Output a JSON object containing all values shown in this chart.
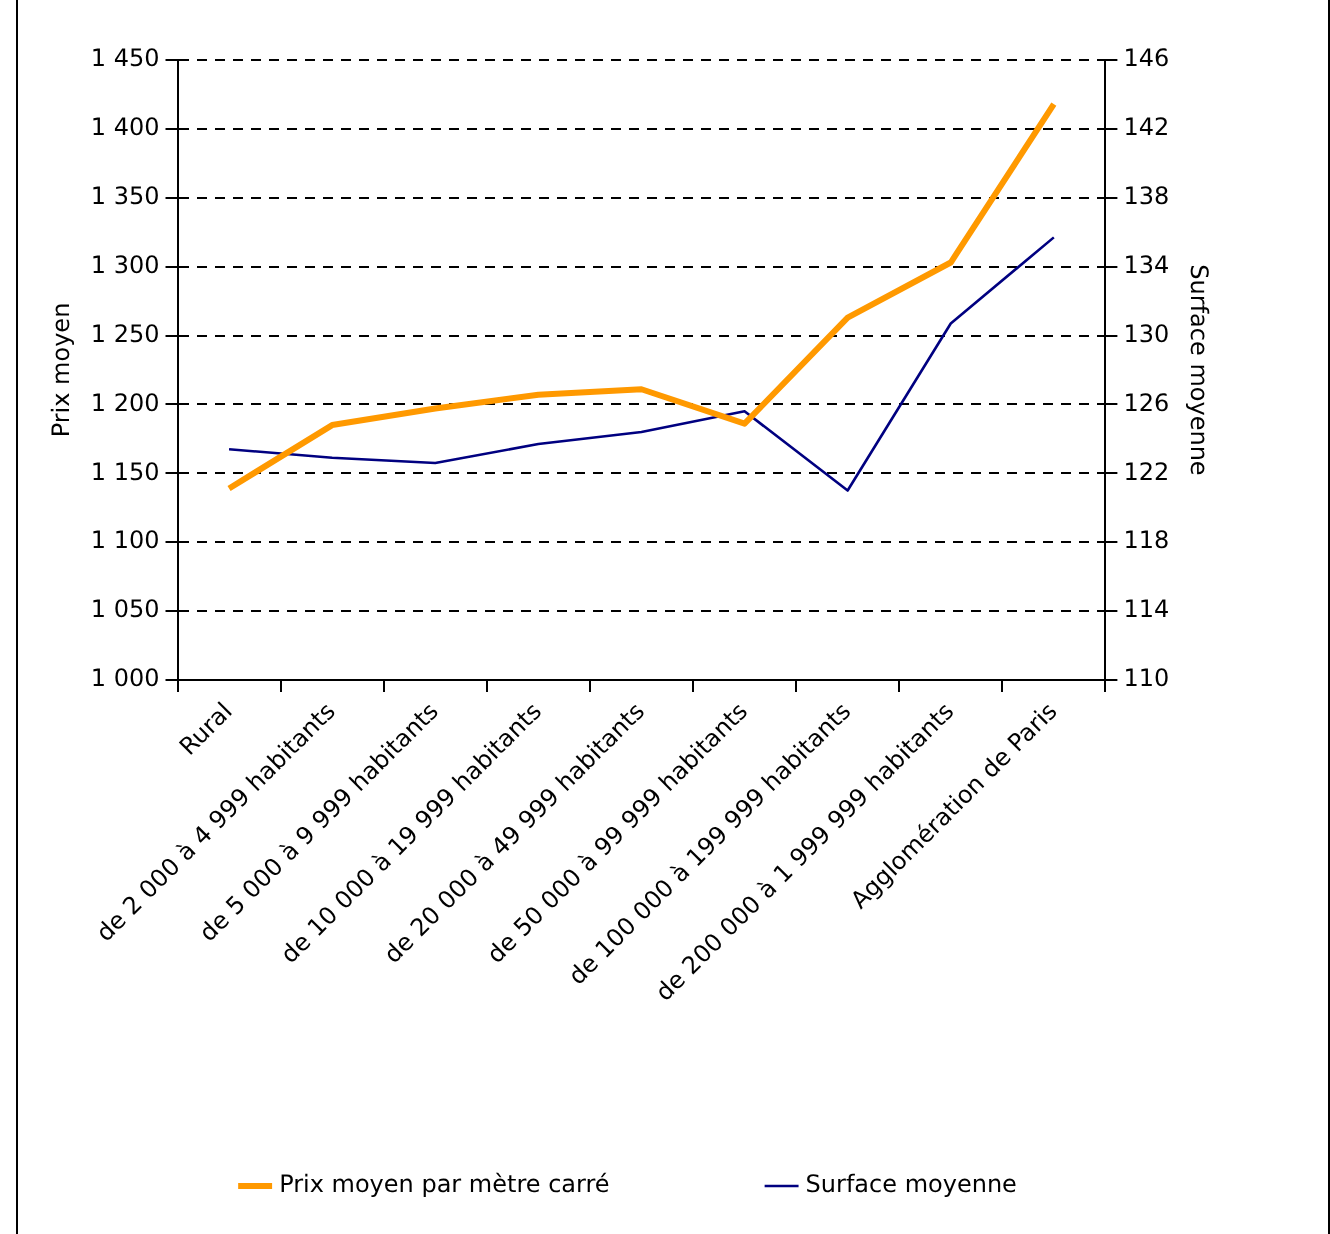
{
  "chart_data": {
    "type": "line",
    "ylabel": "Prix moyen",
    "y2label": "Surface moyenne",
    "categories": [
      "Rural",
      "de 2 000 à 4 999 habitants",
      "de 5 000 à 9 999 habitants",
      "de 10 000 à 19 999 habitants",
      "de 20 000 à 49 999 habitants",
      "de 50 000 à 99 999 habitants",
      "de 100 000 à 199 999 habitants",
      "de 200 000 à 1 999 999 habitants",
      "Agglomération de Paris"
    ],
    "series": [
      {
        "name": "Prix moyen par mètre carré",
        "color": "#ff9900",
        "values": [
          1139,
          1185,
          1197,
          1207,
          1211,
          1186,
          1263,
          1303,
          1418
        ]
      },
      {
        "name": "Surface moyenne",
        "color": "#000080",
        "axis": "y2",
        "values": [
          123.4,
          122.9,
          122.6,
          123.7,
          124.4,
          125.6,
          121.0,
          130.7,
          135.7
        ]
      }
    ],
    "ylim": [
      1000,
      1450
    ],
    "yticks": [
      {
        "value": 1000,
        "label": "1 000"
      },
      {
        "value": 1050,
        "label": "1 050"
      },
      {
        "value": 1100,
        "label": "1 100"
      },
      {
        "value": 1150,
        "label": "1 150"
      },
      {
        "value": 1200,
        "label": "1 200"
      },
      {
        "value": 1250,
        "label": "1 250"
      },
      {
        "value": 1300,
        "label": "1 300"
      },
      {
        "value": 1350,
        "label": "1 350"
      },
      {
        "value": 1400,
        "label": "1 400"
      },
      {
        "value": 1450,
        "label": "1 450"
      }
    ],
    "y2lim": [
      110,
      146
    ],
    "y2ticks": [
      110,
      114,
      118,
      122,
      126,
      130,
      134,
      138,
      142,
      146
    ],
    "grid": "y",
    "legend": "bottom",
    "marker": "none",
    "line_style": "solid"
  }
}
